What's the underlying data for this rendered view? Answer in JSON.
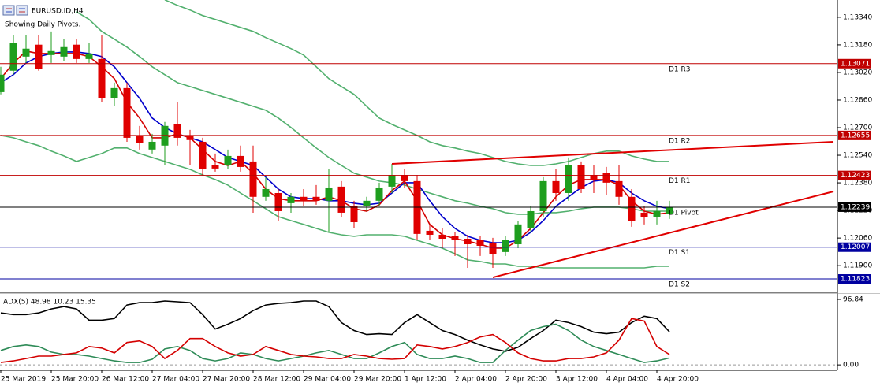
{
  "chart_data": [
    {
      "type": "candlestick",
      "title": "EURUSD.ID,H4",
      "subtitle": "Showing Daily Pivots.",
      "categories": [
        "25 Mar 2019",
        null,
        null,
        null,
        "25 Mar 20:00",
        null,
        null,
        null,
        "26 Mar 12:00",
        null,
        null,
        null,
        "27 Mar 04:00",
        null,
        null,
        null,
        "27 Mar 20:00",
        null,
        null,
        null,
        "28 Mar 12:00",
        null,
        null,
        null,
        "29 Mar 04:00",
        null,
        null,
        null,
        "29 Mar 20:00",
        null,
        null,
        null,
        "1 Apr 12:00",
        null,
        null,
        null,
        "2 Apr 04:00",
        null,
        null,
        null,
        "2 Apr 20:00",
        null,
        null,
        null,
        "3 Apr 12:00",
        null,
        null,
        null,
        "4 Apr 04:00",
        null,
        null,
        null,
        "4 Apr 20:00",
        null
      ],
      "open": [
        1.12906,
        1.1303,
        1.13112,
        1.13181,
        1.13121,
        1.13112,
        1.13181,
        1.13098,
        1.13098,
        1.1287,
        1.12929,
        1.12655,
        1.12573,
        1.12596,
        1.12719,
        1.12655,
        1.12618,
        1.12481,
        1.12481,
        1.12536,
        1.12504,
        1.12299,
        1.12321,
        1.12262,
        1.12299,
        1.12299,
        1.12276,
        1.12358,
        1.12244,
        1.12244,
        1.12276,
        1.12358,
        1.12426,
        1.1239,
        1.12102,
        1.12079,
        1.1207,
        1.12056,
        1.12047,
        1.12033,
        1.11979,
        1.12024,
        1.12116,
        1.12216,
        1.1239,
        1.12321,
        1.12481,
        1.12426,
        1.12436,
        1.1239,
        1.12299,
        1.12207,
        1.12184,
        1.12198
      ],
      "high": [
        1.13053,
        1.13235,
        1.13235,
        1.13235,
        1.13258,
        1.13213,
        1.13213,
        1.1319,
        1.13235,
        1.12961,
        1.12961,
        1.1271,
        1.12664,
        1.12733,
        1.12847,
        1.12687,
        1.12641,
        1.1255,
        1.12573,
        1.12596,
        1.12596,
        1.12413,
        1.12344,
        1.12321,
        1.12344,
        1.12367,
        1.12458,
        1.1239,
        1.12276,
        1.12299,
        1.12381,
        1.1249,
        1.12458,
        1.12426,
        1.12139,
        1.12116,
        1.12093,
        1.12079,
        1.1207,
        1.12061,
        1.1207,
        1.12161,
        1.12244,
        1.12413,
        1.12458,
        1.12527,
        1.12504,
        1.12481,
        1.12472,
        1.12481,
        1.12344,
        1.12244,
        1.12276,
        1.12276
      ],
      "low": [
        1.12893,
        1.13007,
        1.13075,
        1.1303,
        1.13075,
        1.13085,
        1.13075,
        1.13075,
        1.12847,
        1.12824,
        1.12618,
        1.12573,
        1.1255,
        1.12481,
        1.12596,
        1.12481,
        1.12426,
        1.12445,
        1.12458,
        1.12445,
        1.12207,
        1.12276,
        1.12161,
        1.12207,
        1.12244,
        1.12253,
        1.12093,
        1.12184,
        1.12116,
        1.12216,
        1.12244,
        1.12321,
        1.12353,
        1.12047,
        1.12047,
        1.12001,
        1.11956,
        1.11887,
        1.11956,
        1.11887,
        1.11956,
        1.12001,
        1.12093,
        1.12184,
        1.12276,
        1.12276,
        1.12321,
        1.12321,
        1.12308,
        1.12253,
        1.12125,
        1.12139,
        1.12139,
        1.12171
      ],
      "close": [
        1.13007,
        1.1319,
        1.13158,
        1.13039,
        1.13144,
        1.13167,
        1.13098,
        1.1313,
        1.1287,
        1.12929,
        1.12641,
        1.12609,
        1.12618,
        1.1271,
        1.12641,
        1.12628,
        1.12458,
        1.12463,
        1.12536,
        1.12472,
        1.12299,
        1.12344,
        1.12216,
        1.12299,
        1.12276,
        1.12276,
        1.12353,
        1.12207,
        1.12152,
        1.12276,
        1.12353,
        1.12426,
        1.1239,
        1.12084,
        1.12079,
        1.12056,
        1.12047,
        1.12024,
        1.12015,
        1.11969,
        1.12047,
        1.12139,
        1.12216,
        1.1239,
        1.12321,
        1.12481,
        1.12344,
        1.12399,
        1.12381,
        1.12299,
        1.12161,
        1.1218,
        1.12216,
        1.12239
      ],
      "up_color": "#1e9e1e",
      "down_color": "#e00000",
      "series": [
        {
          "color": "#52b06e",
          "values": [
            null,
            null,
            null,
            null,
            null,
            null,
            null,
            null,
            null,
            null,
            null,
            null,
            null,
            1.13441,
            1.13409,
            1.13382,
            1.1335,
            1.13327,
            1.13304,
            1.13281,
            1.13258,
            1.13222,
            1.1319,
            1.13158,
            1.13121,
            1.13053,
            1.12984,
            1.12938,
            1.12893,
            1.12824,
            1.12756,
            1.12719,
            1.12687,
            1.12655,
            1.12618,
            1.12596,
            1.12582,
            1.12564,
            1.1255,
            1.12527,
            1.12504,
            1.1249,
            1.12481,
            1.12481,
            1.1249,
            1.12504,
            1.12527,
            1.1255,
            1.12564,
            1.12564,
            1.12536,
            1.12518,
            1.12504,
            1.12504
          ]
        },
        {
          "color": "#52b06e",
          "values": [
            null,
            null,
            null,
            null,
            null,
            null,
            1.13372,
            1.13327,
            1.13258,
            1.13213,
            1.13167,
            1.13112,
            1.13053,
            1.13007,
            1.12961,
            1.12938,
            1.12915,
            1.12893,
            1.1287,
            1.12847,
            1.12824,
            1.12801,
            1.12756,
            1.12701,
            1.12641,
            1.12582,
            1.12527,
            1.12481,
            1.12436,
            1.12413,
            1.1239,
            1.12381,
            1.12367,
            1.12344,
            1.12321,
            1.12299,
            1.12276,
            1.12262,
            1.12244,
            1.1223,
            1.12207,
            1.12198,
            1.12198,
            1.12207,
            1.12207,
            1.12216,
            1.1223,
            1.12239,
            1.12239,
            1.12239,
            1.1223,
            1.12216,
            1.12216,
            1.12216
          ]
        },
        {
          "color": "#52b06e",
          "values": [
            1.12655,
            1.12641,
            1.12618,
            1.12596,
            1.12564,
            1.12536,
            1.12504,
            1.12527,
            1.1255,
            1.12582,
            1.12582,
            1.1255,
            1.12527,
            1.12504,
            1.12481,
            1.12458,
            1.12426,
            1.12399,
            1.12367,
            1.12321,
            1.12276,
            1.1223,
            1.12184,
            1.12161,
            1.12139,
            1.12116,
            1.12093,
            1.12079,
            1.1207,
            1.12079,
            1.12079,
            1.12079,
            1.1207,
            1.12047,
            1.12024,
            1.12001,
            1.11969,
            1.11933,
            1.11924,
            1.1191,
            1.1191,
            1.11896,
            1.11896,
            1.11887,
            1.11887,
            1.11887,
            1.11887,
            1.11887,
            1.11887,
            1.11887,
            1.11887,
            1.11887,
            1.11896,
            1.11896
          ]
        },
        {
          "color": "#0000cc",
          "values": [
            1.12961,
            1.13007,
            1.13075,
            1.13112,
            1.1313,
            1.13139,
            1.13139,
            1.1313,
            1.13112,
            1.13053,
            1.12961,
            1.1287,
            1.12756,
            1.12701,
            1.12664,
            1.12641,
            1.12618,
            1.12573,
            1.12527,
            1.12504,
            1.12481,
            1.12413,
            1.12344,
            1.12299,
            1.12289,
            1.12289,
            1.12276,
            1.12276,
            1.12262,
            1.12253,
            1.12262,
            1.12321,
            1.12381,
            1.12381,
            1.12276,
            1.12184,
            1.12116,
            1.1207,
            1.12047,
            1.12033,
            1.12033,
            1.12047,
            1.12093,
            1.12161,
            1.12244,
            1.12299,
            1.12353,
            1.1239,
            1.12399,
            1.12381,
            1.12321,
            1.12276,
            1.12244,
            1.1223
          ]
        },
        {
          "color": "#d40000",
          "values": [
            1.12984,
            1.13075,
            1.13144,
            1.1313,
            1.1313,
            1.1313,
            1.1313,
            1.13112,
            1.13053,
            1.12984,
            1.12847,
            1.12756,
            1.12641,
            1.12641,
            1.12664,
            1.12641,
            1.12573,
            1.12504,
            1.12481,
            1.12504,
            1.12436,
            1.12344,
            1.12289,
            1.12276,
            1.12276,
            1.12276,
            1.12299,
            1.12276,
            1.1223,
            1.12216,
            1.12253,
            1.12335,
            1.1239,
            1.12276,
            1.12139,
            1.12079,
            1.12056,
            1.12043,
            1.12024,
            1.12001,
            1.12001,
            1.12047,
            1.12116,
            1.12207,
            1.12299,
            1.12367,
            1.12399,
            1.12399,
            1.12399,
            1.12367,
            1.12276,
            1.12216,
            1.12198,
            1.12207
          ]
        }
      ],
      "pivots": [
        {
          "label": "D1 R3",
          "value": 1.13071,
          "color": "#c00000"
        },
        {
          "label": "D1 R2",
          "value": 1.12655,
          "color": "#c00000"
        },
        {
          "label": "D1 R1",
          "value": 1.12423,
          "color": "#c00000"
        },
        {
          "label": "D1 Pivot",
          "value": 1.12239,
          "color": "#000000"
        },
        {
          "label": "D1 S1",
          "value": 1.12007,
          "color": "#0000a0"
        },
        {
          "label": "D1 S2",
          "value": 1.11823,
          "color": "#0000a0"
        }
      ],
      "trendlines": [
        {
          "x": [
            31,
            66
          ],
          "values": [
            1.1249,
            1.12618
          ],
          "color": "#e00000"
        },
        {
          "x": [
            39,
            66
          ],
          "values": [
            1.11832,
            1.1233
          ],
          "color": "#e00000"
        }
      ],
      "ylim": [
        1.1175,
        1.1344
      ],
      "yticks": [
        {
          "value": 1.1334,
          "label": "1.13340"
        },
        {
          "value": 1.1318,
          "label": "1.13180"
        },
        {
          "value": 1.1302,
          "label": "1.13020"
        },
        {
          "value": 1.1286,
          "label": "1.12860"
        },
        {
          "value": 1.127,
          "label": "1.12700"
        },
        {
          "value": 1.1254,
          "label": "1.12540"
        },
        {
          "value": 1.1238,
          "label": "1.12380"
        },
        {
          "value": 1.1222,
          "label": "1.12220"
        },
        {
          "value": 1.1206,
          "label": "1.12060"
        },
        {
          "value": 1.119,
          "label": "1.11900"
        }
      ]
    },
    {
      "type": "line",
      "title": "ADX(5) 48.98 10.23 15.35",
      "series": [
        {
          "color": "#000000",
          "values": [
            76.8,
            74.4,
            74.4,
            76.8,
            82.7,
            86.2,
            82.7,
            66.1,
            66.1,
            68.5,
            88.6,
            92.1,
            92.1,
            94.5,
            93.3,
            92.1,
            74.4,
            53.1,
            60.2,
            68.5,
            80.3,
            88.6,
            90.9,
            92.1,
            94.5,
            94.5,
            86.2,
            62.6,
            50.8,
            44.9,
            46.1,
            44.9,
            62.6,
            74.4,
            62.6,
            50.8,
            44.9,
            36.6,
            29.5,
            23.6,
            20.1,
            26.0,
            39.0,
            50.8,
            66.1,
            62.6,
            56.7,
            48.4,
            46.1,
            48.4,
            62.6,
            72.0,
            68.5,
            48.98
          ]
        },
        {
          "color": "#2e8b57",
          "values": [
            21.3,
            27.2,
            29.5,
            27.2,
            18.9,
            15.4,
            15.4,
            13.0,
            9.4,
            5.9,
            3.5,
            3.5,
            8.3,
            23.6,
            27.2,
            21.3,
            9.4,
            5.9,
            9.4,
            17.7,
            15.4,
            9.4,
            5.9,
            9.4,
            13.0,
            17.7,
            21.3,
            15.4,
            9.4,
            9.4,
            17.7,
            27.2,
            33.1,
            15.4,
            9.4,
            9.4,
            13.0,
            9.4,
            3.5,
            3.5,
            21.3,
            36.6,
            50.8,
            56.7,
            60.2,
            50.8,
            36.6,
            27.2,
            21.3,
            15.4,
            9.4,
            3.5,
            5.9,
            10.23
          ]
        },
        {
          "color": "#d40000",
          "values": [
            3.5,
            5.9,
            9.4,
            13.0,
            13.0,
            15.4,
            17.7,
            27.2,
            24.8,
            17.7,
            33.1,
            35.4,
            27.2,
            9.4,
            21.3,
            39.0,
            39.0,
            27.2,
            17.7,
            13.0,
            15.4,
            27.2,
            21.3,
            15.4,
            13.0,
            11.8,
            9.4,
            9.4,
            15.4,
            13.0,
            9.4,
            8.3,
            9.4,
            29.5,
            27.2,
            23.6,
            27.2,
            33.1,
            41.3,
            44.9,
            33.1,
            17.7,
            9.4,
            5.9,
            5.9,
            9.4,
            9.4,
            11.8,
            17.7,
            36.6,
            68.5,
            64.9,
            27.2,
            15.35
          ]
        }
      ],
      "ylim": [
        -8,
        105
      ],
      "yticks": [
        {
          "value": 96.84,
          "label": "96.84"
        },
        {
          "value": 0,
          "label": "0.00"
        }
      ]
    }
  ]
}
